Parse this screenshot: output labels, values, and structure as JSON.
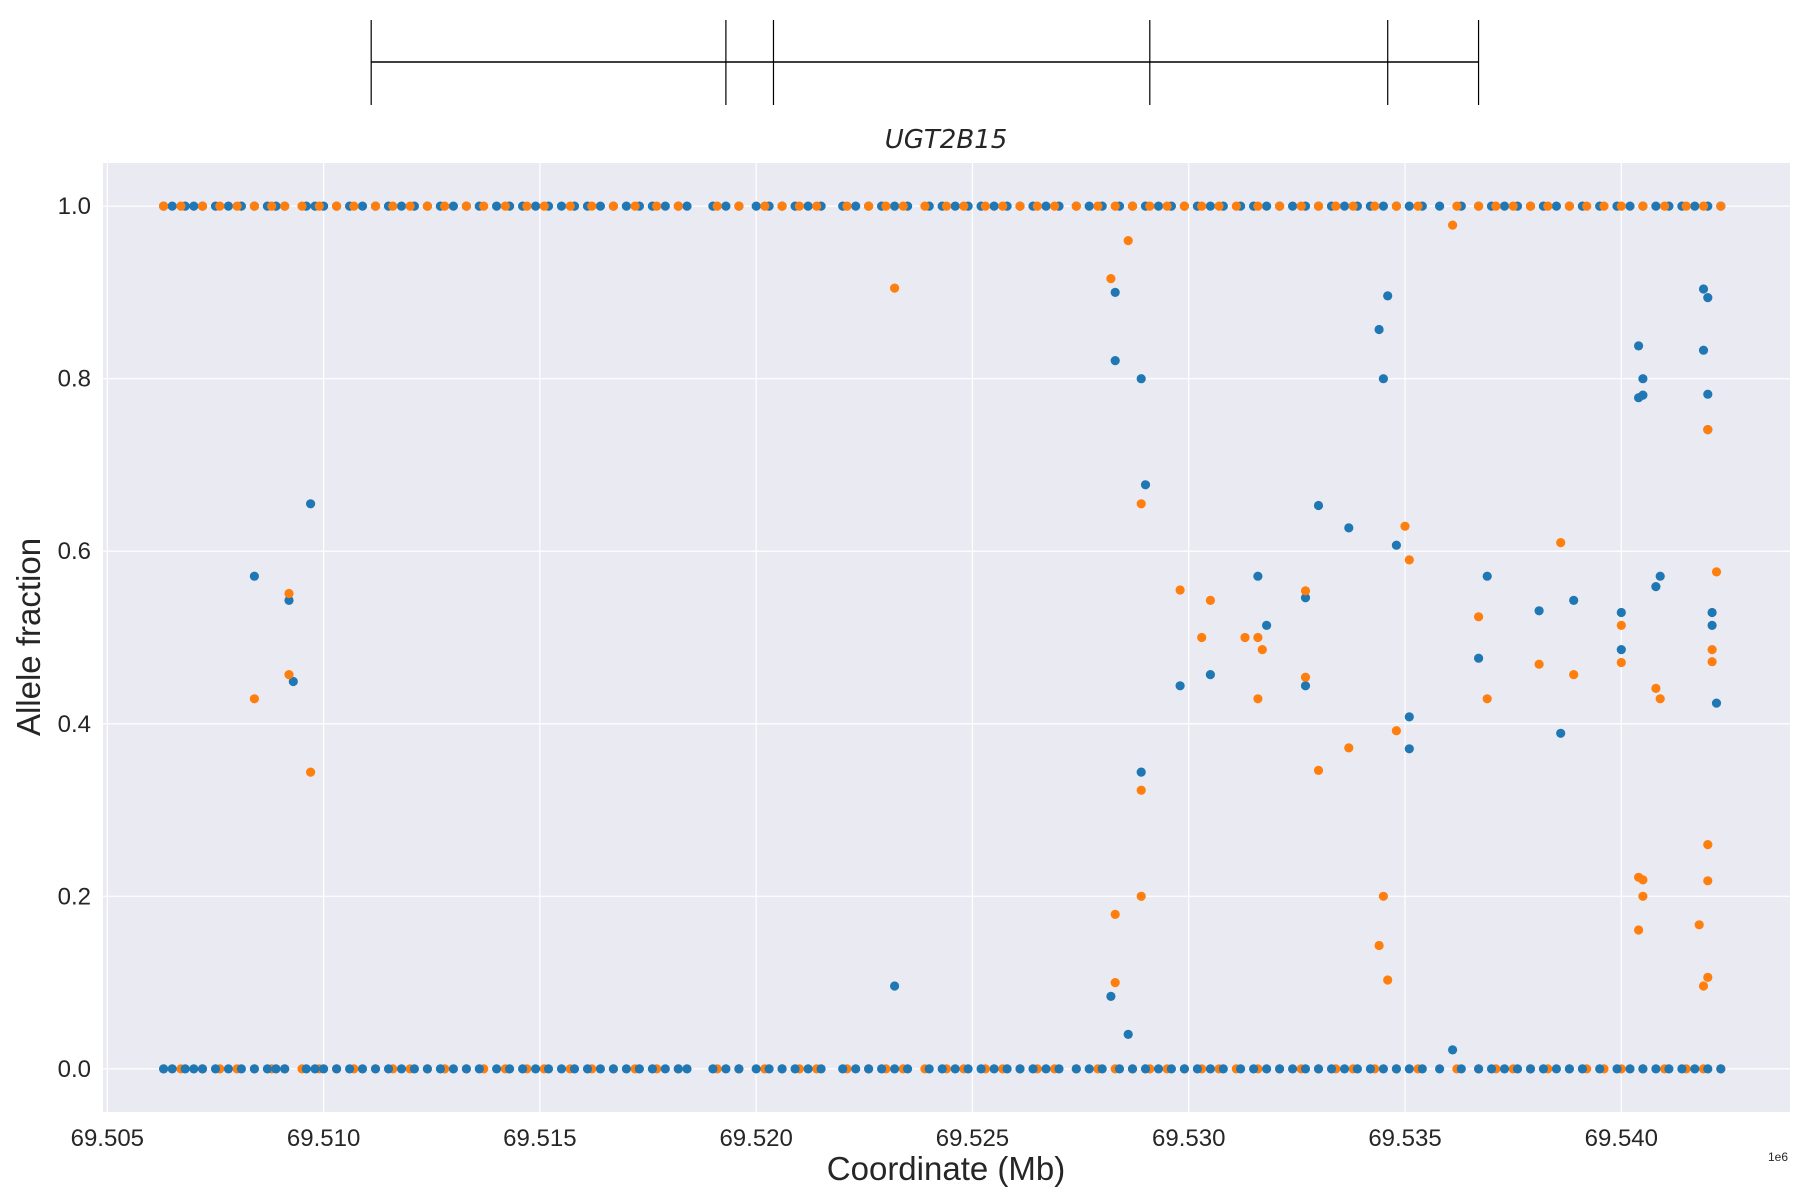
{
  "chart_data": {
    "type": "scatter",
    "title": "UGT2B15",
    "xlabel": "Coordinate (Mb)",
    "ylabel": "Allele fraction",
    "x_offset_label": "1e6",
    "xlim": [
      69504900,
      69543900
    ],
    "ylim": [
      -0.05,
      1.05
    ],
    "x_ticks": [
      69505000,
      69510000,
      69515000,
      69520000,
      69525000,
      69530000,
      69535000,
      69540000
    ],
    "x_tick_labels": [
      "69.505",
      "69.510",
      "69.515",
      "69.520",
      "69.525",
      "69.530",
      "69.535",
      "69.540"
    ],
    "y_ticks": [
      0.0,
      0.2,
      0.4,
      0.6,
      0.8,
      1.0
    ],
    "y_tick_labels": [
      "0.0",
      "0.2",
      "0.4",
      "0.6",
      "0.8",
      "1.0"
    ],
    "grid": true,
    "gene_track": {
      "span": [
        69511100,
        69536700
      ],
      "exon_boundaries": [
        69511100,
        69519300,
        69520400,
        69529100,
        69534600,
        69536700
      ]
    },
    "series": [
      {
        "color": "#1f77b4",
        "points": [
          [
            69508400,
            0.571
          ],
          [
            69509200,
            0.543
          ],
          [
            69509300,
            0.449
          ],
          [
            69509700,
            0.655
          ],
          [
            69523200,
            0.096
          ],
          [
            69528200,
            0.084
          ],
          [
            69528300,
            0.9
          ],
          [
            69528300,
            0.821
          ],
          [
            69528600,
            0.04
          ],
          [
            69528900,
            0.8
          ],
          [
            69528900,
            0.344
          ],
          [
            69529000,
            0.677
          ],
          [
            69529800,
            0.444
          ],
          [
            69530500,
            0.457
          ],
          [
            69531600,
            0.571
          ],
          [
            69531800,
            0.514
          ],
          [
            69532700,
            0.546
          ],
          [
            69532700,
            0.444
          ],
          [
            69533000,
            0.653
          ],
          [
            69533700,
            0.627
          ],
          [
            69534400,
            0.857
          ],
          [
            69534500,
            0.8
          ],
          [
            69534600,
            0.896
          ],
          [
            69534800,
            0.607
          ],
          [
            69535100,
            0.371
          ],
          [
            69535100,
            0.408
          ],
          [
            69536100,
            0.022
          ],
          [
            69536700,
            0.476
          ],
          [
            69536900,
            0.571
          ],
          [
            69538100,
            0.531
          ],
          [
            69538600,
            0.389
          ],
          [
            69538900,
            0.543
          ],
          [
            69540000,
            0.529
          ],
          [
            69540000,
            0.486
          ],
          [
            69540400,
            0.778
          ],
          [
            69540400,
            0.838
          ],
          [
            69540500,
            0.8
          ],
          [
            69540500,
            0.781
          ],
          [
            69540800,
            0.559
          ],
          [
            69540900,
            0.571
          ],
          [
            69541900,
            0.904
          ],
          [
            69541900,
            0.833
          ],
          [
            69542000,
            0.894
          ],
          [
            69542000,
            0.782
          ],
          [
            69542000,
            0.741
          ],
          [
            69542100,
            0.529
          ],
          [
            69542100,
            0.514
          ],
          [
            69542200,
            0.424
          ]
        ],
        "fixed_values_x": [
          69506300,
          69506500,
          69506800,
          69507000,
          69507200,
          69507500,
          69507800,
          69508100,
          69508400,
          69508700,
          69508900,
          69509100,
          69509600,
          69509800,
          69510000,
          69510300,
          69510600,
          69510900,
          69511200,
          69511500,
          69511800,
          69512100,
          69512400,
          69512700,
          69513000,
          69513300,
          69513600,
          69514000,
          69514300,
          69514600,
          69514900,
          69515200,
          69515500,
          69515800,
          69516100,
          69516400,
          69516700,
          69517000,
          69517300,
          69517600,
          69517900,
          69518200,
          69518400,
          69519000,
          69519300,
          69519600,
          69520000,
          69520300,
          69520600,
          69520900,
          69521200,
          69521500,
          69522000,
          69522300,
          69522600,
          69522900,
          69523200,
          69523500,
          69524000,
          69524300,
          69524600,
          69524900,
          69525200,
          69525500,
          69525800,
          69526100,
          69526400,
          69526700,
          69527000,
          69527400,
          69527700,
          69528000,
          69528400,
          69528700,
          69529000,
          69529300,
          69529600,
          69529900,
          69530200,
          69530500,
          69530800,
          69531200,
          69531500,
          69531800,
          69532100,
          69532400,
          69532700,
          69533000,
          69533300,
          69533600,
          69533900,
          69534200,
          69534500,
          69534800,
          69535100,
          69535400,
          69535800,
          69536300,
          69536700,
          69537000,
          69537300,
          69537600,
          69537900,
          69538200,
          69538500,
          69538800,
          69539100,
          69539500,
          69539900,
          69540200,
          69540500,
          69540800,
          69541100,
          69541400,
          69541700,
          69542000,
          69542300
        ]
      },
      {
        "color": "#ff7f0e",
        "points": [
          [
            69508400,
            0.429
          ],
          [
            69509200,
            0.457
          ],
          [
            69509200,
            0.551
          ],
          [
            69509700,
            0.344
          ],
          [
            69523200,
            0.905
          ],
          [
            69528200,
            0.916
          ],
          [
            69528300,
            0.179
          ],
          [
            69528300,
            0.1
          ],
          [
            69528600,
            0.96
          ],
          [
            69528900,
            0.655
          ],
          [
            69528900,
            0.323
          ],
          [
            69528900,
            0.2
          ],
          [
            69529800,
            0.555
          ],
          [
            69530300,
            0.5
          ],
          [
            69530500,
            0.543
          ],
          [
            69531300,
            0.5
          ],
          [
            69531600,
            0.429
          ],
          [
            69531600,
            0.5
          ],
          [
            69531700,
            0.486
          ],
          [
            69532700,
            0.454
          ],
          [
            69532700,
            0.554
          ],
          [
            69533000,
            0.346
          ],
          [
            69533700,
            0.372
          ],
          [
            69534400,
            0.143
          ],
          [
            69534500,
            0.2
          ],
          [
            69534600,
            0.103
          ],
          [
            69534800,
            0.392
          ],
          [
            69535000,
            0.629
          ],
          [
            69535100,
            0.59
          ],
          [
            69536100,
            0.978
          ],
          [
            69536700,
            0.524
          ],
          [
            69536900,
            0.429
          ],
          [
            69538100,
            0.469
          ],
          [
            69538600,
            0.61
          ],
          [
            69538900,
            0.457
          ],
          [
            69540000,
            0.514
          ],
          [
            69540000,
            0.471
          ],
          [
            69540400,
            0.161
          ],
          [
            69540400,
            0.222
          ],
          [
            69540500,
            0.2
          ],
          [
            69540500,
            0.219
          ],
          [
            69540800,
            0.441
          ],
          [
            69540900,
            0.429
          ],
          [
            69541800,
            0.167
          ],
          [
            69541900,
            0.096
          ],
          [
            69542000,
            0.106
          ],
          [
            69542000,
            0.26
          ],
          [
            69542000,
            0.218
          ],
          [
            69542000,
            0.741
          ],
          [
            69542100,
            0.486
          ],
          [
            69542100,
            0.472
          ],
          [
            69542200,
            0.576
          ]
        ],
        "fixed_values_x": [
          69506300,
          69506700,
          69507200,
          69507600,
          69508000,
          69508400,
          69508800,
          69509100,
          69509500,
          69509900,
          69510300,
          69510700,
          69511200,
          69511600,
          69512000,
          69512400,
          69512800,
          69513300,
          69513700,
          69514200,
          69514700,
          69515100,
          69515700,
          69516200,
          69516700,
          69517200,
          69517700,
          69518200,
          69519100,
          69519600,
          69520200,
          69520600,
          69521000,
          69521400,
          69522100,
          69522600,
          69523000,
          69523400,
          69523900,
          69524400,
          69524800,
          69525300,
          69525700,
          69526100,
          69526500,
          69526900,
          69527400,
          69527900,
          69528300,
          69528700,
          69529100,
          69529500,
          69529900,
          69530300,
          69530700,
          69531100,
          69531600,
          69532100,
          69532600,
          69533000,
          69533400,
          69533800,
          69534300,
          69534800,
          69535300,
          69536200,
          69536700,
          69537100,
          69537500,
          69537900,
          69538300,
          69538800,
          69539200,
          69539600,
          69540000,
          69540500,
          69541000,
          69541500,
          69541900,
          69542300
        ]
      }
    ]
  }
}
